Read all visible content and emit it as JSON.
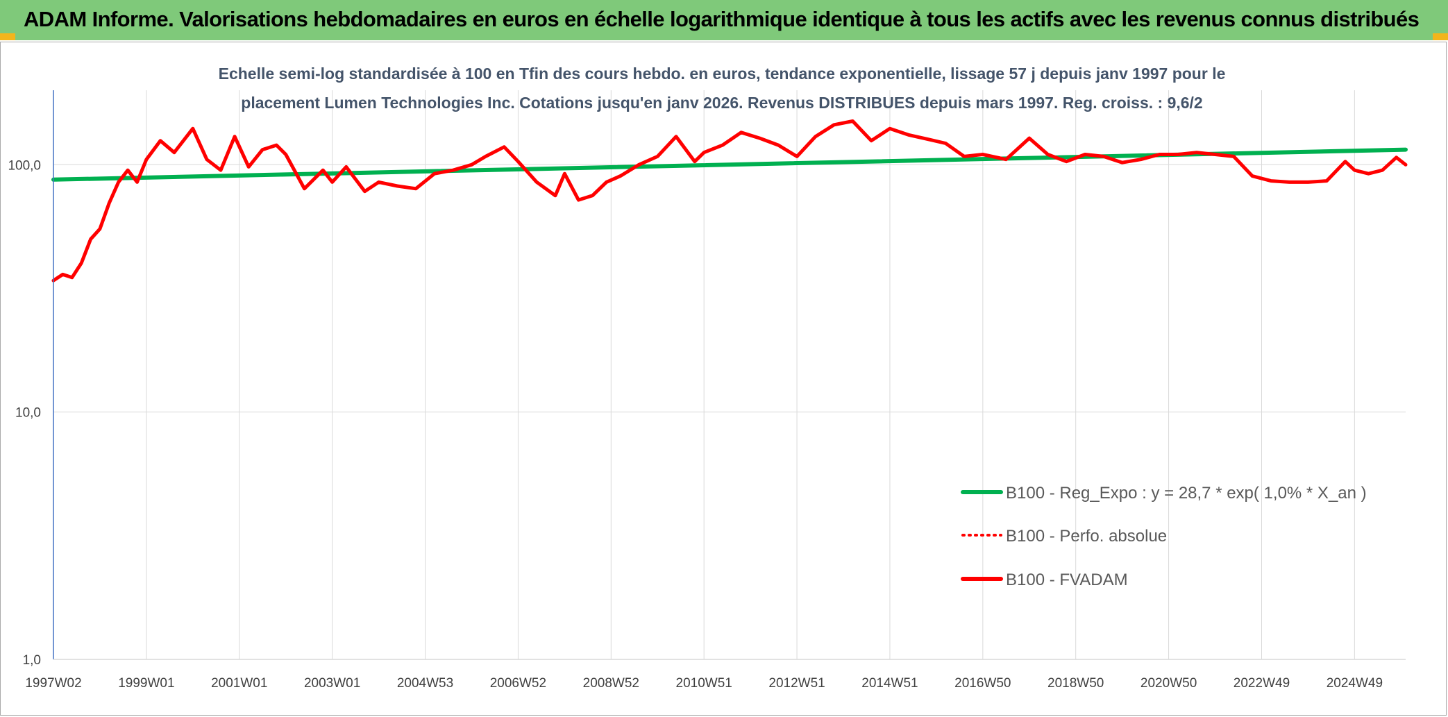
{
  "header": {
    "title": "ADAM Informe. Valorisations hebdomadaires en euros en échelle logarithmique identique à tous les actifs avec les revenus connus distribués"
  },
  "colors": {
    "header_bg": "#7fc97a",
    "corner": "#f2b51c",
    "trend": "#00b050",
    "fvadam": "#ff0000",
    "title": "#44546a",
    "axis": "#4472c4",
    "grid": "#d9d9d9"
  },
  "chart_data": {
    "type": "line",
    "title_lines": [
      "Echelle semi-log standardisée à 100 en Tfin des cours hebdo. en euros, tendance exponentielle, lissage 57 j depuis janv 1997 pour le",
      "placement Lumen Technologies Inc. Cotations jusqu'en janv 2026. Revenus DISTRIBUES depuis mars 1997. Reg. croiss. : 9,6/2"
    ],
    "y_scale": "log",
    "ylim": [
      1,
      200
    ],
    "y_ticks": [
      {
        "value": 1,
        "label": "1,0"
      },
      {
        "value": 10,
        "label": "10,0"
      },
      {
        "value": 100,
        "label": "100,0"
      }
    ],
    "x_range": [
      1997.0,
      2026.1
    ],
    "x_ticks": [
      {
        "year": 1997.0,
        "label": "1997W02"
      },
      {
        "year": 1999.0,
        "label": "1999W01"
      },
      {
        "year": 2001.0,
        "label": "2001W01"
      },
      {
        "year": 2003.0,
        "label": "2003W01"
      },
      {
        "year": 2005.0,
        "label": "2004W53"
      },
      {
        "year": 2007.0,
        "label": "2006W52"
      },
      {
        "year": 2009.0,
        "label": "2008W52"
      },
      {
        "year": 2011.0,
        "label": "2010W51"
      },
      {
        "year": 2013.0,
        "label": "2012W51"
      },
      {
        "year": 2015.0,
        "label": "2014W51"
      },
      {
        "year": 2017.0,
        "label": "2016W50"
      },
      {
        "year": 2019.0,
        "label": "2018W50"
      },
      {
        "year": 2021.0,
        "label": "2020W50"
      },
      {
        "year": 2023.0,
        "label": "2022W49"
      },
      {
        "year": 2025.0,
        "label": "2024W49"
      }
    ],
    "legend_position": "right-bottom",
    "series": [
      {
        "name": "B100 - Reg_Expo : y = 28,7 * exp( 1,0% *  X_an )",
        "style": "solid",
        "color": "#00b050",
        "x": [
          1997.0,
          2026.1
        ],
        "y": [
          87,
          115
        ]
      },
      {
        "name": "B100 - Perfo. absolue",
        "style": "dotted",
        "color": "#ff0000",
        "x": [],
        "y": []
      },
      {
        "name": "B100 - FVADAM",
        "style": "solid",
        "color": "#ff0000",
        "x": [
          1997.0,
          1997.2,
          1997.4,
          1997.6,
          1997.8,
          1998.0,
          1998.2,
          1998.4,
          1998.6,
          1998.8,
          1999.0,
          1999.3,
          1999.6,
          2000.0,
          2000.3,
          2000.6,
          2000.9,
          2001.2,
          2001.5,
          2001.8,
          2002.0,
          2002.4,
          2002.8,
          2003.0,
          2003.3,
          2003.7,
          2004.0,
          2004.4,
          2004.8,
          2005.2,
          2005.6,
          2006.0,
          2006.3,
          2006.7,
          2007.0,
          2007.4,
          2007.8,
          2008.0,
          2008.3,
          2008.6,
          2008.9,
          2009.2,
          2009.6,
          2010.0,
          2010.4,
          2010.8,
          2011.0,
          2011.4,
          2011.8,
          2012.2,
          2012.6,
          2013.0,
          2013.4,
          2013.8,
          2014.2,
          2014.6,
          2015.0,
          2015.4,
          2015.8,
          2016.2,
          2016.6,
          2017.0,
          2017.5,
          2018.0,
          2018.4,
          2018.8,
          2019.2,
          2019.6,
          2020.0,
          2020.4,
          2020.8,
          2021.2,
          2021.6,
          2022.0,
          2022.4,
          2022.8,
          2023.2,
          2023.6,
          2024.0,
          2024.4,
          2024.8,
          2025.0,
          2025.3,
          2025.6,
          2025.9,
          2026.1
        ],
        "y": [
          34,
          36,
          35,
          40,
          50,
          55,
          70,
          85,
          95,
          85,
          105,
          125,
          112,
          140,
          105,
          95,
          130,
          98,
          115,
          120,
          110,
          80,
          95,
          85,
          98,
          78,
          85,
          82,
          80,
          92,
          95,
          100,
          108,
          118,
          103,
          85,
          75,
          92,
          72,
          75,
          85,
          90,
          100,
          108,
          130,
          103,
          112,
          120,
          135,
          128,
          120,
          108,
          130,
          145,
          150,
          125,
          140,
          132,
          127,
          122,
          108,
          110,
          105,
          128,
          110,
          103,
          110,
          108,
          102,
          105,
          110,
          110,
          112,
          110,
          108,
          90,
          86,
          85,
          85,
          86,
          103,
          95,
          92,
          95,
          107,
          100
        ]
      }
    ]
  }
}
